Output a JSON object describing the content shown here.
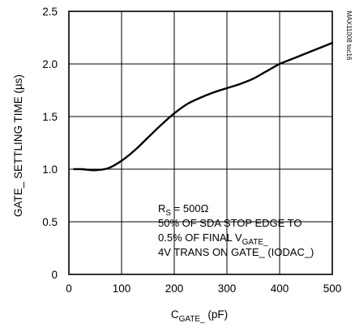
{
  "chart_data": {
    "type": "line",
    "title": "",
    "xlabel": {
      "main": "C",
      "sub": "GATE_",
      "unit": " (pF)"
    },
    "ylabel": "GATE_ SETTLING TIME (µs)",
    "xlim": [
      0,
      500
    ],
    "ylim": [
      0,
      2.5
    ],
    "x_ticks": [
      0,
      100,
      200,
      300,
      400,
      500
    ],
    "y_ticks": [
      "0",
      "0.5",
      "1.0",
      "1.5",
      "2.0",
      "2.5"
    ],
    "y_tick_values": [
      0,
      0.5,
      1.0,
      1.5,
      2.0,
      2.5
    ],
    "grid": true,
    "series": [
      {
        "x": [
          10,
          25,
          50,
          75,
          100,
          125,
          150,
          175,
          200,
          225,
          250,
          275,
          300,
          325,
          350,
          375,
          400,
          425,
          450,
          475,
          500
        ],
        "y": [
          1.0,
          1.0,
          0.99,
          1.01,
          1.08,
          1.18,
          1.3,
          1.42,
          1.53,
          1.62,
          1.68,
          1.73,
          1.77,
          1.81,
          1.86,
          1.93,
          2.0,
          2.05,
          2.1,
          2.15,
          2.2
        ]
      }
    ],
    "annotations": [
      {
        "main": "R",
        "sub": "S",
        "rest": " = 500Ω"
      },
      {
        "main": "50% OF SDA STOP EDGE TO",
        "sub": "",
        "rest": ""
      },
      {
        "main": "0.5% OF FINAL V",
        "sub": "GATE_",
        "rest": ""
      },
      {
        "main": "4V TRANS ON GATE_ (IODAC_)",
        "sub": "",
        "rest": ""
      }
    ],
    "side_id": "MAX11008 toc16"
  }
}
